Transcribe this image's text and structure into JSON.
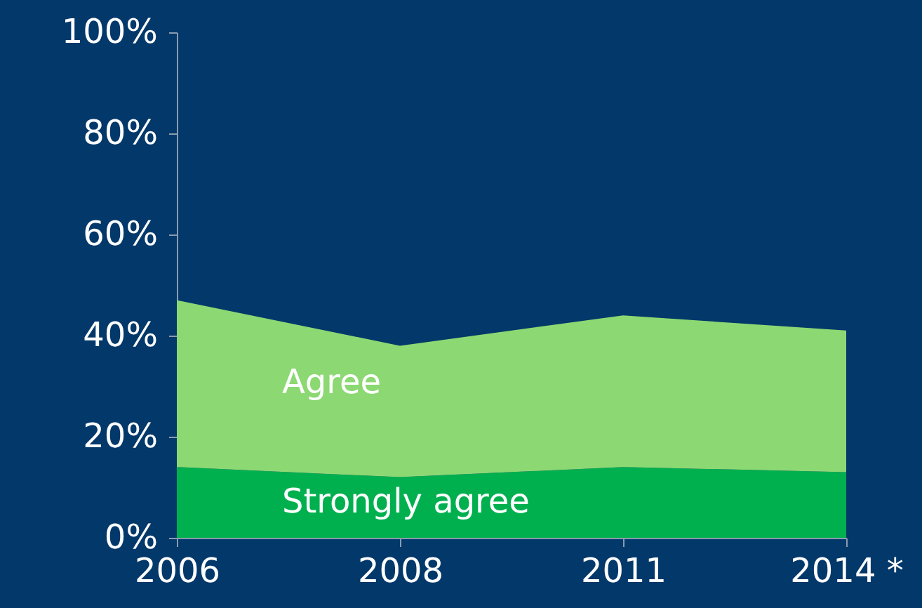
{
  "chart_data": {
    "type": "area",
    "stacked": true,
    "categories": [
      "2006",
      "2008",
      "2011",
      "2014 *"
    ],
    "series": [
      {
        "name": "Strongly agree",
        "color": "#00b04f",
        "values": [
          14,
          12,
          14,
          13
        ]
      },
      {
        "name": "Agree",
        "color": "#8cd873",
        "values": [
          33,
          26,
          30,
          28
        ]
      }
    ],
    "ylim": [
      0,
      100
    ],
    "yticks": [
      {
        "value": 0,
        "label": "0%"
      },
      {
        "value": 20,
        "label": "20%"
      },
      {
        "value": 40,
        "label": "40%"
      },
      {
        "value": 60,
        "label": "60%"
      },
      {
        "value": 80,
        "label": "80%"
      },
      {
        "value": 100,
        "label": "100%"
      }
    ],
    "grid": false
  }
}
